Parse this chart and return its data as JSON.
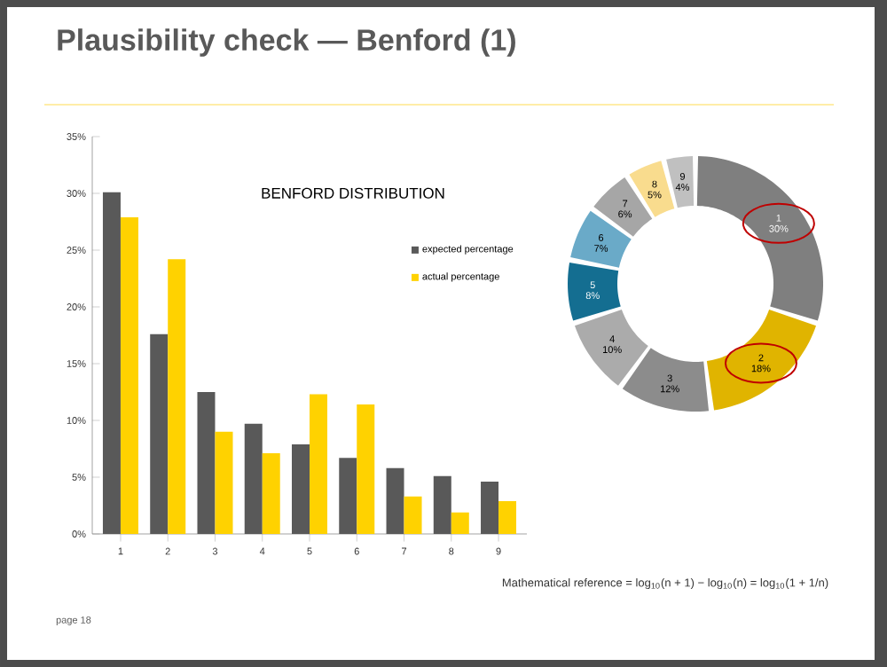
{
  "chart_data": [
    {
      "type": "bar",
      "title": "BENFORD DISTRIBUTION",
      "categories": [
        "1",
        "2",
        "3",
        "4",
        "5",
        "6",
        "7",
        "8",
        "9"
      ],
      "series": [
        {
          "name": "expected percentage",
          "color": "#595959",
          "values": [
            30.1,
            17.6,
            12.5,
            9.7,
            7.9,
            6.7,
            5.8,
            5.1,
            4.6
          ]
        },
        {
          "name": "actual percentage",
          "color": "#ffd200",
          "values": [
            27.9,
            24.2,
            9.0,
            7.1,
            12.3,
            11.4,
            3.3,
            1.9,
            2.9
          ]
        }
      ],
      "ylim": [
        0,
        35
      ],
      "yticks": [
        {
          "value": 0,
          "label": "0%"
        },
        {
          "value": 5,
          "label": "5%"
        },
        {
          "value": 10,
          "label": "10%"
        },
        {
          "value": 15,
          "label": "15%"
        },
        {
          "value": 20,
          "label": "20%"
        },
        {
          "value": 25,
          "label": "25%"
        },
        {
          "value": 30,
          "label": "30%"
        },
        {
          "value": 35,
          "label": "35%"
        }
      ],
      "legend": "right",
      "annotations": [
        "Plausibility check — Benford (1)",
        "Mathematical reference = log$_{10}$(n + 1) − log$_{10}$(n) = log$_{10}$(1 + 1/n)",
        "page 18"
      ]
    },
    {
      "type": "donut",
      "categories": [
        "1",
        "2",
        "3",
        "4",
        "5",
        "6",
        "7",
        "8",
        "9"
      ],
      "values": [
        30,
        18,
        12,
        10,
        8,
        7,
        6,
        5,
        4
      ],
      "value_labels": [
        "30%",
        "18%",
        "12%",
        "10%",
        "8%",
        "7%",
        "6%",
        "5%",
        "4%"
      ],
      "colors": [
        "#7f7f7f",
        "#e0b400",
        "#8c8c8c",
        "#ababab",
        "#146e91",
        "#6aaac8",
        "#a6a6a6",
        "#f9dc8e",
        "#c0c0c0"
      ]
    }
  ]
}
